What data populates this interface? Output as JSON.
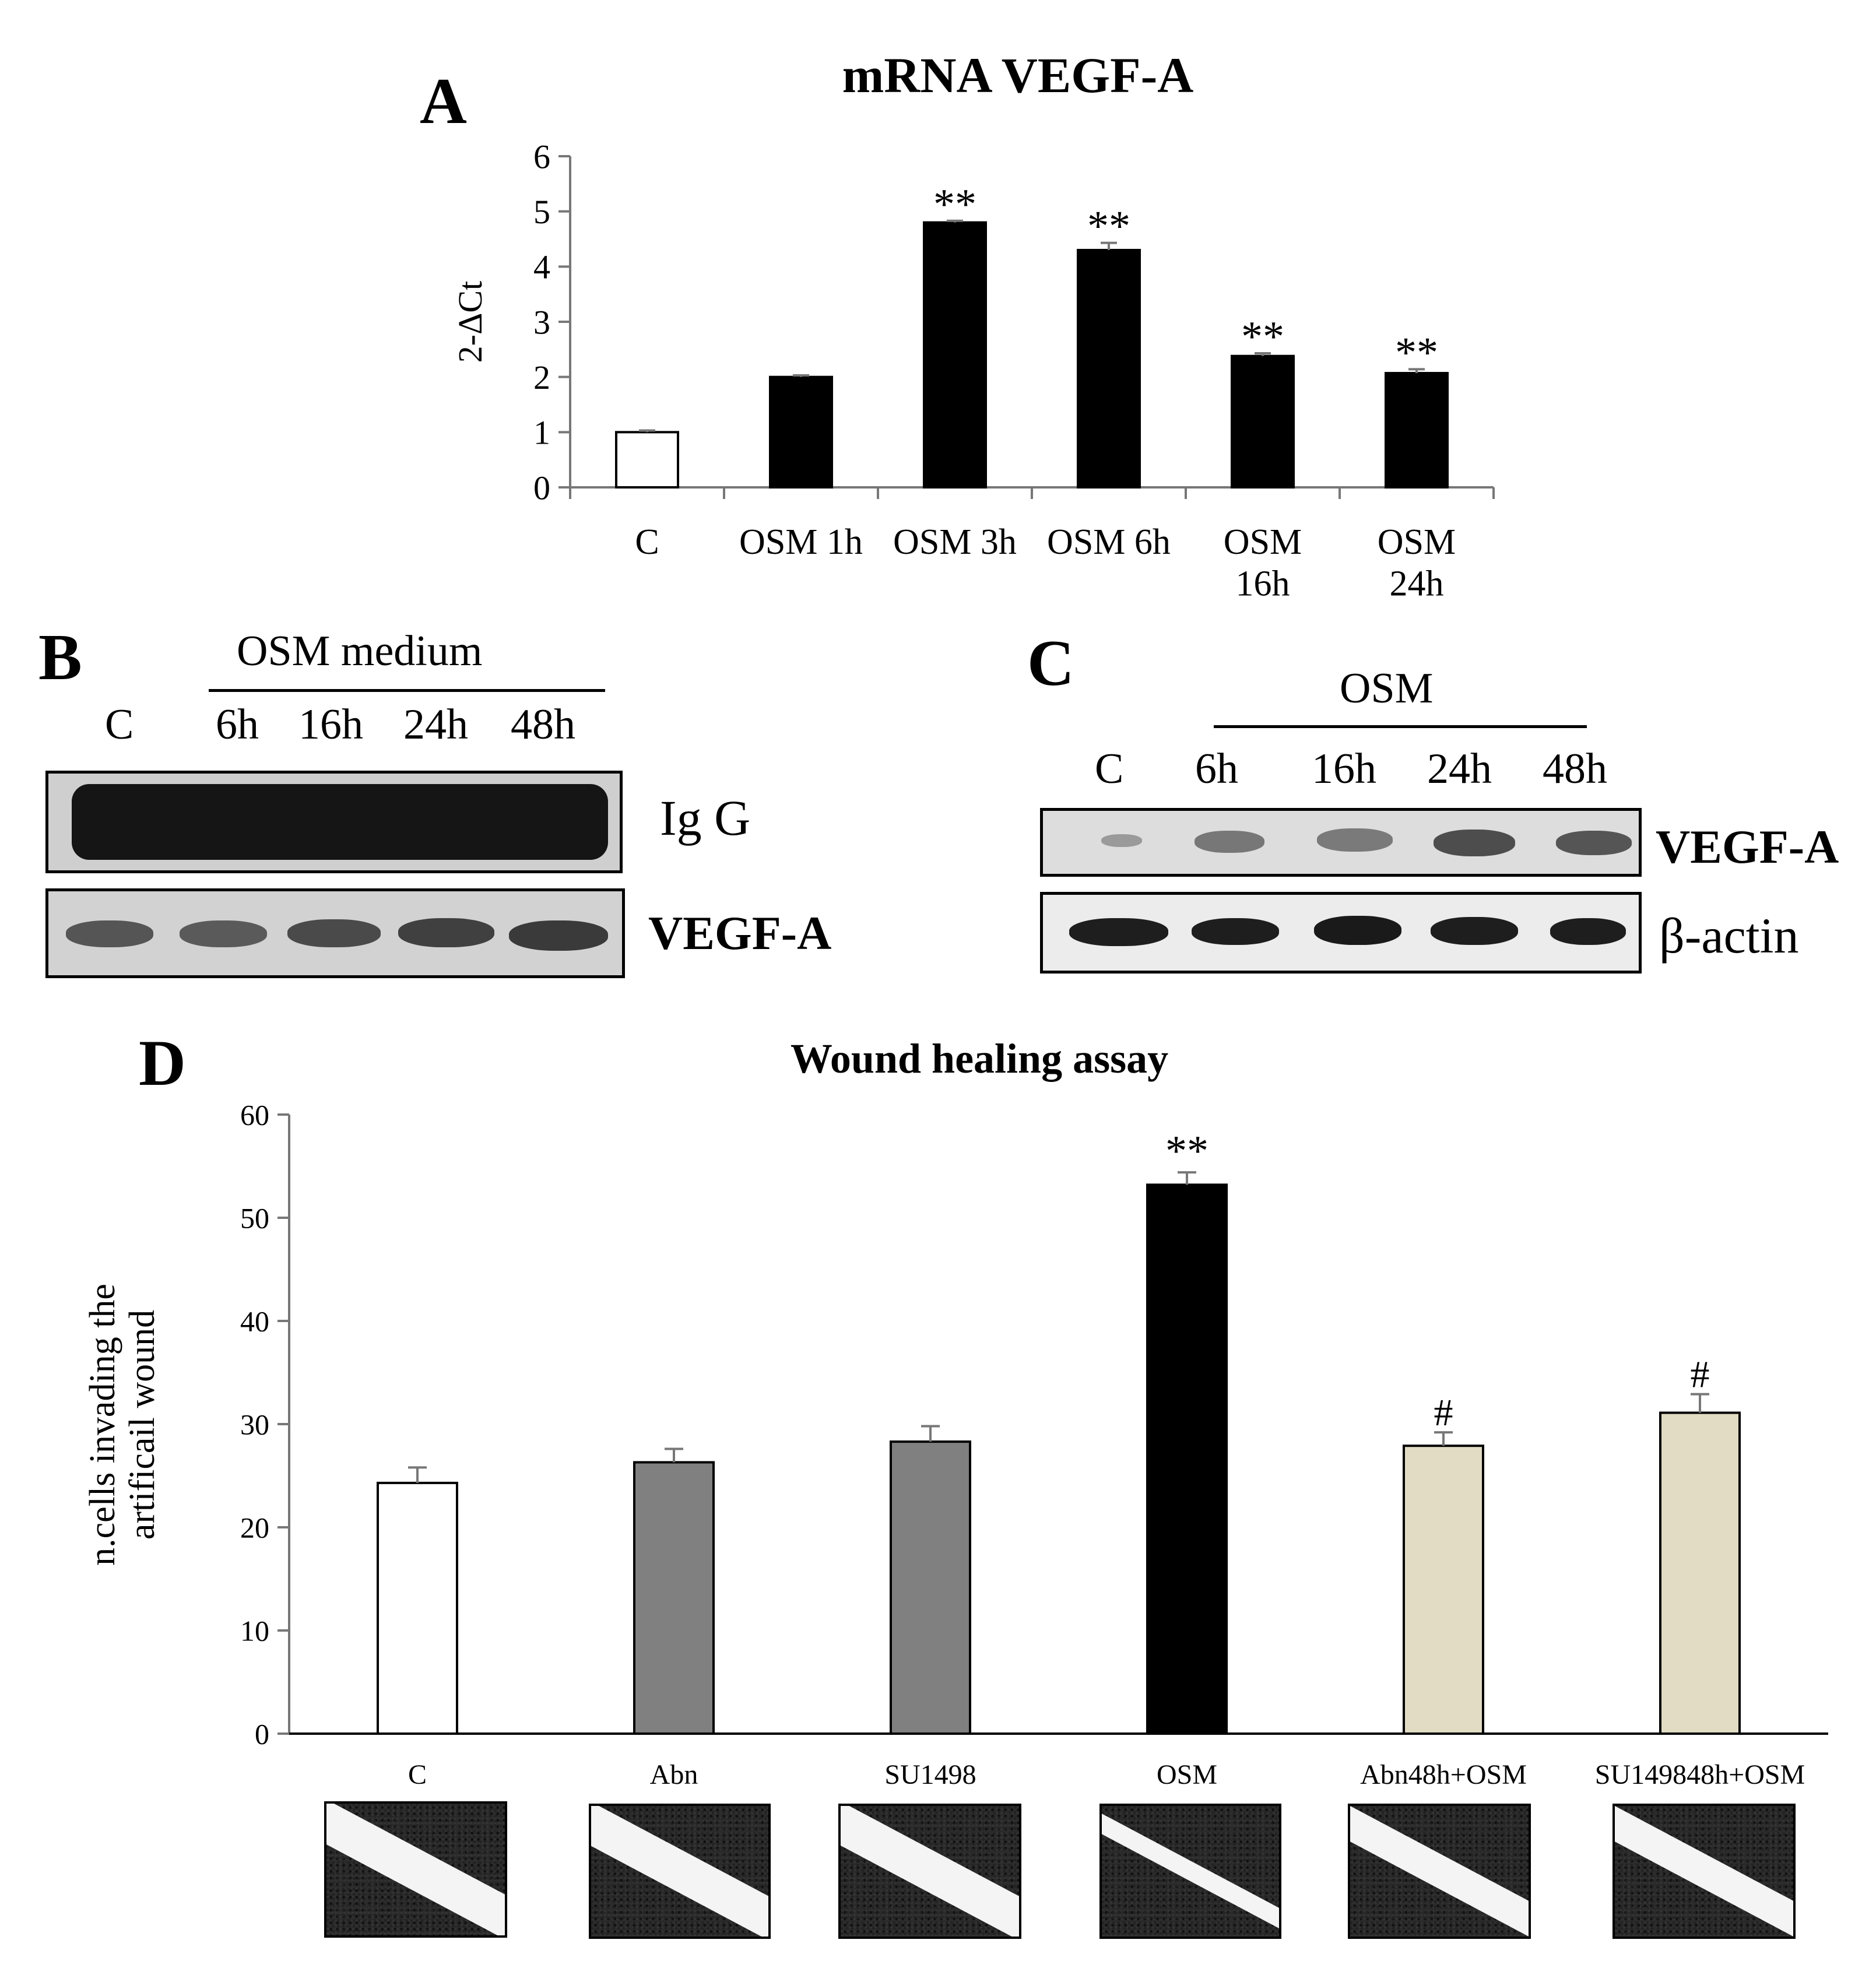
{
  "panels": {
    "a": "A",
    "b": "B",
    "c": "C",
    "d": "D"
  },
  "chart_data": [
    {
      "type": "bar",
      "title": "mRNA VEGF-A",
      "ylabel": "2-ΔCt",
      "xlabel": "",
      "ylim": [
        0,
        6
      ],
      "yticks": [
        0,
        1,
        2,
        3,
        4,
        5,
        6
      ],
      "categories": [
        "C",
        "OSM 1h",
        "OSM  3h",
        "OSM 6h",
        "OSM 16h",
        "OSM 24h"
      ],
      "category_lines": [
        [
          "C"
        ],
        [
          "OSM 1h"
        ],
        [
          "OSM  3h"
        ],
        [
          "OSM 6h"
        ],
        [
          "OSM",
          "16h"
        ],
        [
          "OSM",
          "24h"
        ]
      ],
      "values": [
        1.0,
        2.0,
        4.8,
        4.3,
        2.38,
        2.07
      ],
      "errors": [
        0.03,
        0.03,
        0.03,
        0.13,
        0.05,
        0.07
      ],
      "annotations": [
        "",
        "",
        "**",
        "**",
        "**",
        "**"
      ],
      "colors": [
        "#ffffff",
        "#000000",
        "#000000",
        "#000000",
        "#000000",
        "#000000"
      ],
      "grid": false
    },
    {
      "type": "bar",
      "title": "Wound healing assay",
      "ylabel": "n.cells invading the artificail wound",
      "ylabel_lines": [
        "n.cells invading the",
        "artificail wound"
      ],
      "xlabel": "",
      "ylim": [
        0,
        60
      ],
      "yticks": [
        0,
        10,
        20,
        30,
        40,
        50,
        60
      ],
      "categories": [
        "C",
        "Abn",
        "SU1498",
        "OSM",
        "Abn48h+OSM",
        "SU149848h+OSM"
      ],
      "values": [
        24.3,
        26.3,
        28.3,
        53.2,
        27.9,
        31.1
      ],
      "errors": [
        1.5,
        1.3,
        1.5,
        1.2,
        1.3,
        1.8
      ],
      "annotations": [
        "",
        "",
        "",
        "**",
        "#",
        "#"
      ],
      "colors": [
        "#ffffff",
        "#808080",
        "#808080",
        "#000000",
        "#e2dcc5",
        "#e2dcc5"
      ],
      "grid": false
    }
  ],
  "blot_b": {
    "header": "OSM medium",
    "lanes": [
      "C",
      "6h",
      "16h",
      "24h",
      "48h"
    ],
    "rows": [
      "Ig G",
      "VEGF-A"
    ]
  },
  "blot_c": {
    "header": "OSM",
    "lanes": [
      "C",
      "6h",
      "16h",
      "24h",
      "48h"
    ],
    "rows": [
      "VEGF-A",
      "β-actin"
    ]
  }
}
